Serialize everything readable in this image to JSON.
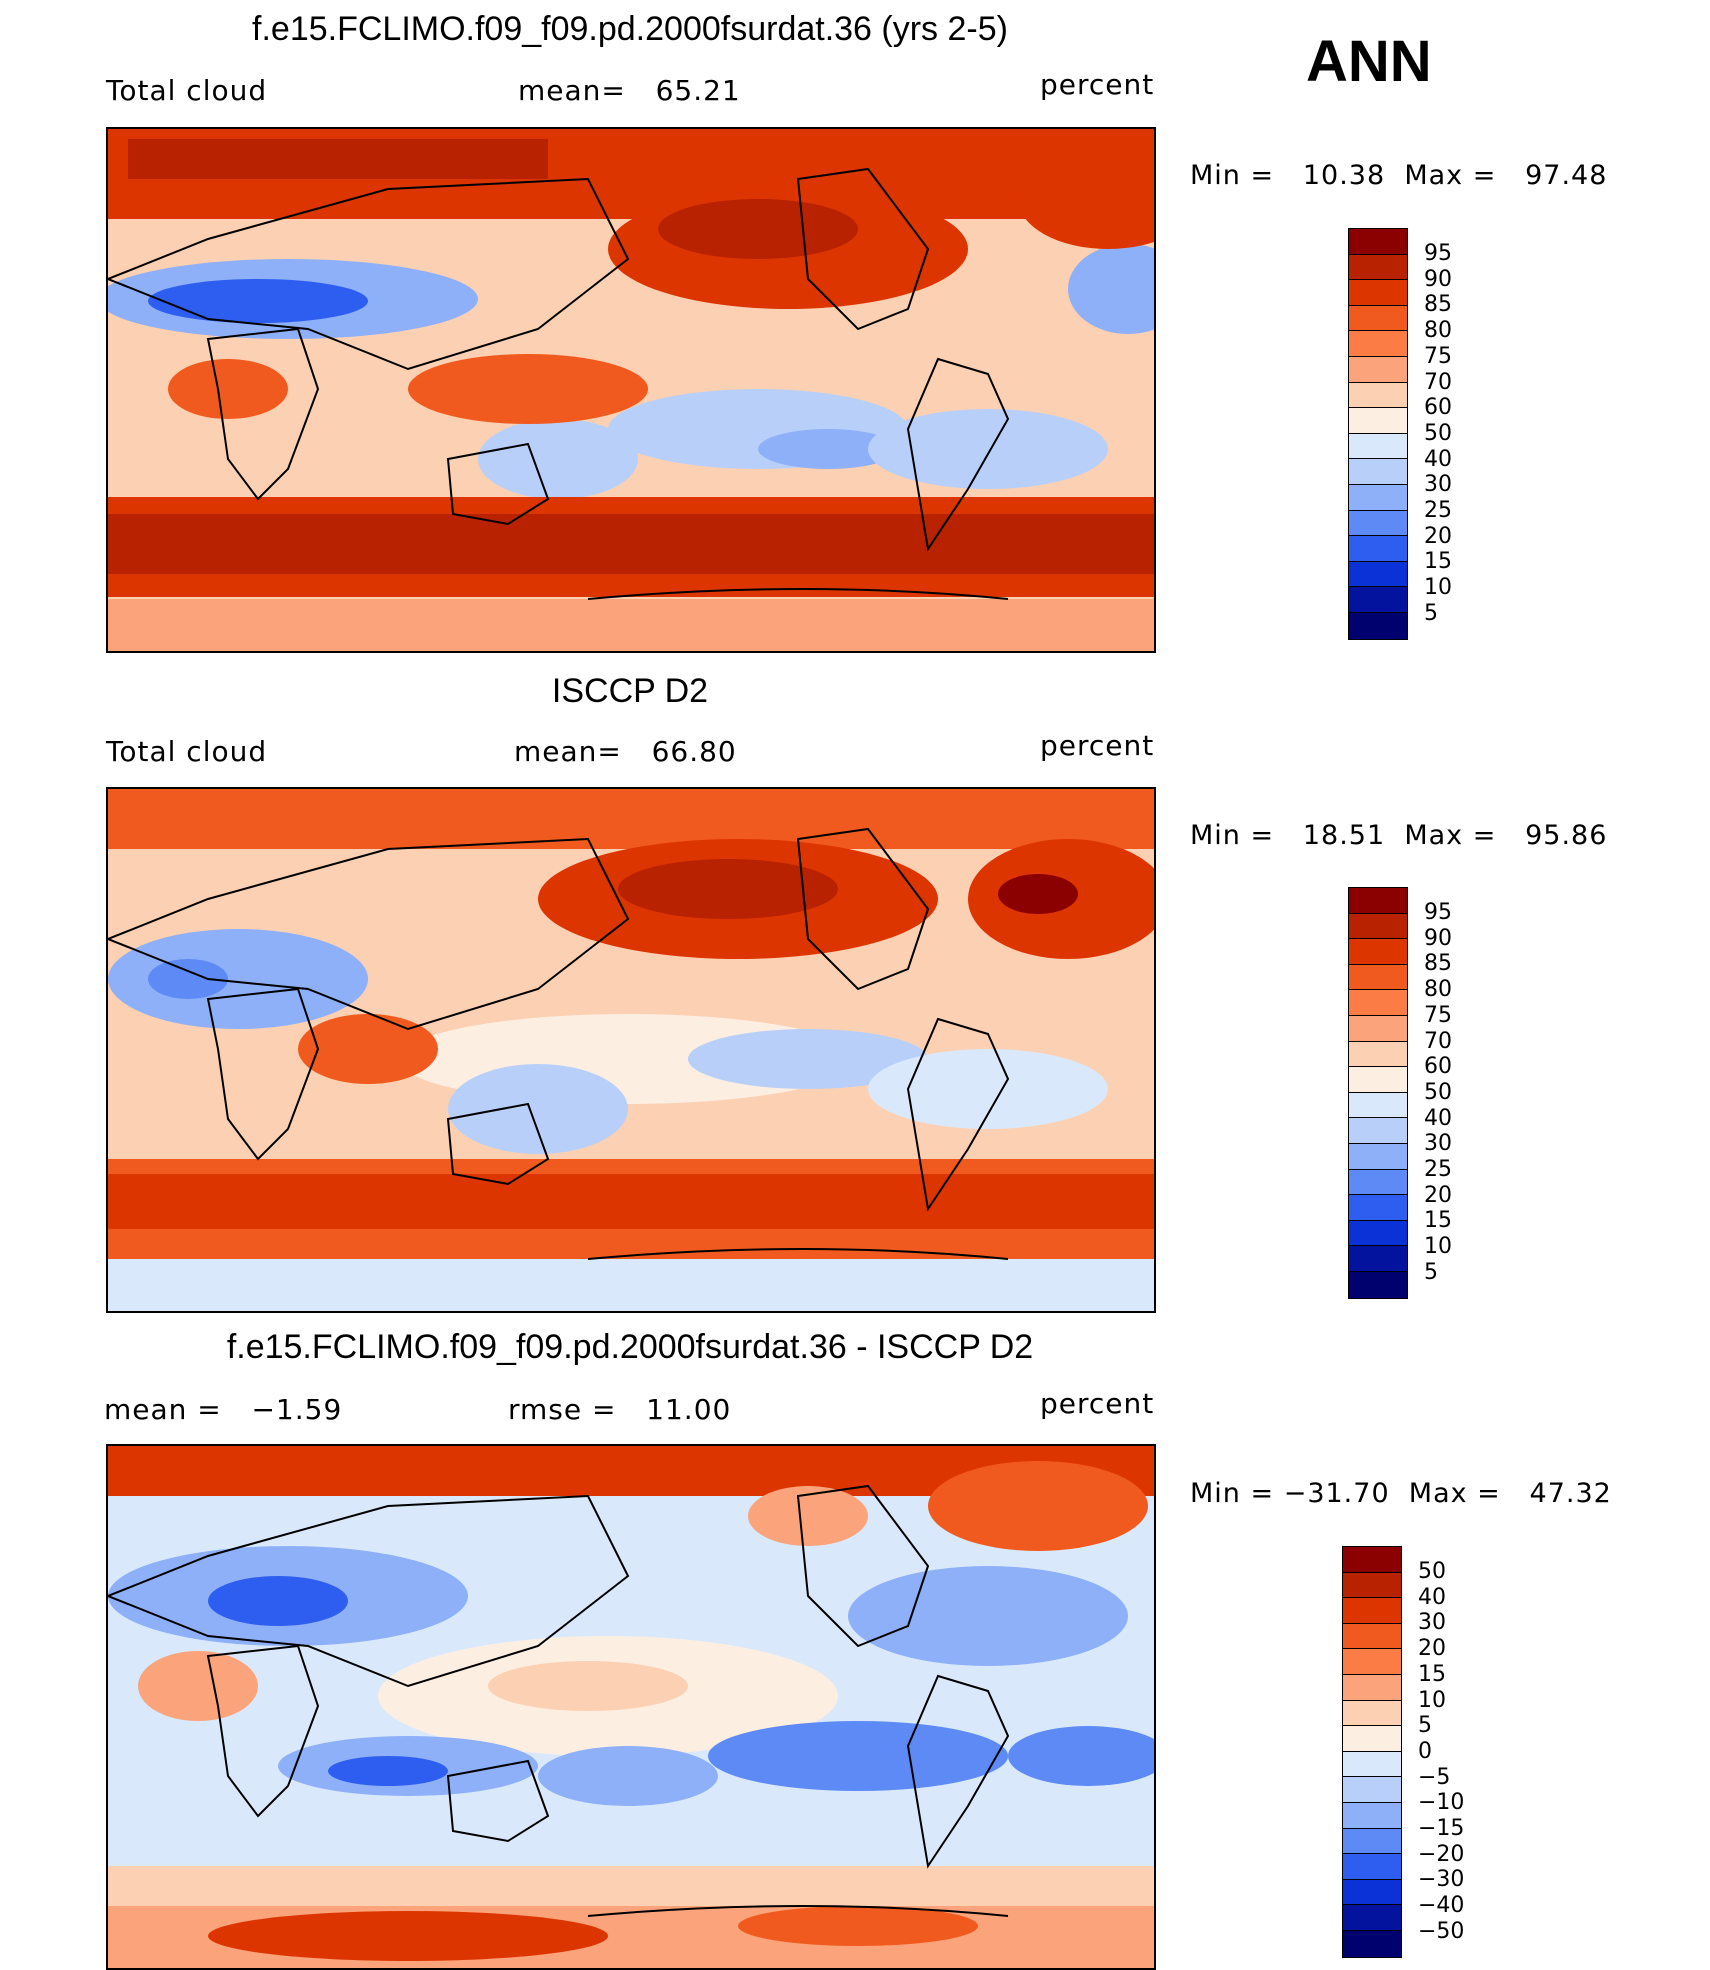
{
  "season": "ANN",
  "panels": [
    {
      "title": "f.e15.FCLIMO.f09_f09.pd.2000fsurdat.36 (yrs 2-5)",
      "left_label": "Total cloud",
      "mid_label": "mean=   65.21",
      "right_label": "percent",
      "minmax": "Min =   10.38  Max =   97.48",
      "legend_labels": [
        "95",
        "90",
        "85",
        "80",
        "75",
        "70",
        "60",
        "50",
        "40",
        "30",
        "25",
        "20",
        "15",
        "10",
        "5"
      ],
      "colors": [
        "#8b0000",
        "#b82200",
        "#dd3500",
        "#f15a1e",
        "#fb7d45",
        "#fba37a",
        "#fcd0b2",
        "#fdeee2",
        "#d9e9fb",
        "#b8cff9",
        "#8eb0f8",
        "#5d8af5",
        "#2e5ef0",
        "#0a32d6",
        "#04139e",
        "#00006e"
      ]
    },
    {
      "title": "ISCCP D2",
      "left_label": "Total cloud",
      "mid_label": "mean=   66.80",
      "right_label": "percent",
      "minmax": "Min =   18.51  Max =   95.86",
      "legend_labels": [
        "95",
        "90",
        "85",
        "80",
        "75",
        "70",
        "60",
        "50",
        "40",
        "30",
        "25",
        "20",
        "15",
        "10",
        "5"
      ],
      "colors": [
        "#8b0000",
        "#b82200",
        "#dd3500",
        "#f15a1e",
        "#fb7d45",
        "#fba37a",
        "#fcd0b2",
        "#fdeee2",
        "#d9e9fb",
        "#b8cff9",
        "#8eb0f8",
        "#5d8af5",
        "#2e5ef0",
        "#0a32d6",
        "#04139e",
        "#00006e"
      ]
    },
    {
      "title": "f.e15.FCLIMO.f09_f09.pd.2000fsurdat.36 - ISCCP D2",
      "left_label": "mean =   −1.59",
      "mid_label": "rmse =   11.00",
      "right_label": "percent",
      "minmax": "Min = −31.70  Max =   47.32",
      "legend_labels": [
        "50",
        "40",
        "30",
        "20",
        "15",
        "10",
        "5",
        "0",
        "−5",
        "−10",
        "−15",
        "−20",
        "−30",
        "−40",
        "−50"
      ],
      "colors": [
        "#8b0000",
        "#b82200",
        "#dd3500",
        "#f15a1e",
        "#fb7d45",
        "#fba37a",
        "#fcd0b2",
        "#fdeee2",
        "#d9e9fb",
        "#b8cff9",
        "#8eb0f8",
        "#5d8af5",
        "#2e5ef0",
        "#0a32d6",
        "#04139e",
        "#00006e"
      ]
    }
  ]
}
